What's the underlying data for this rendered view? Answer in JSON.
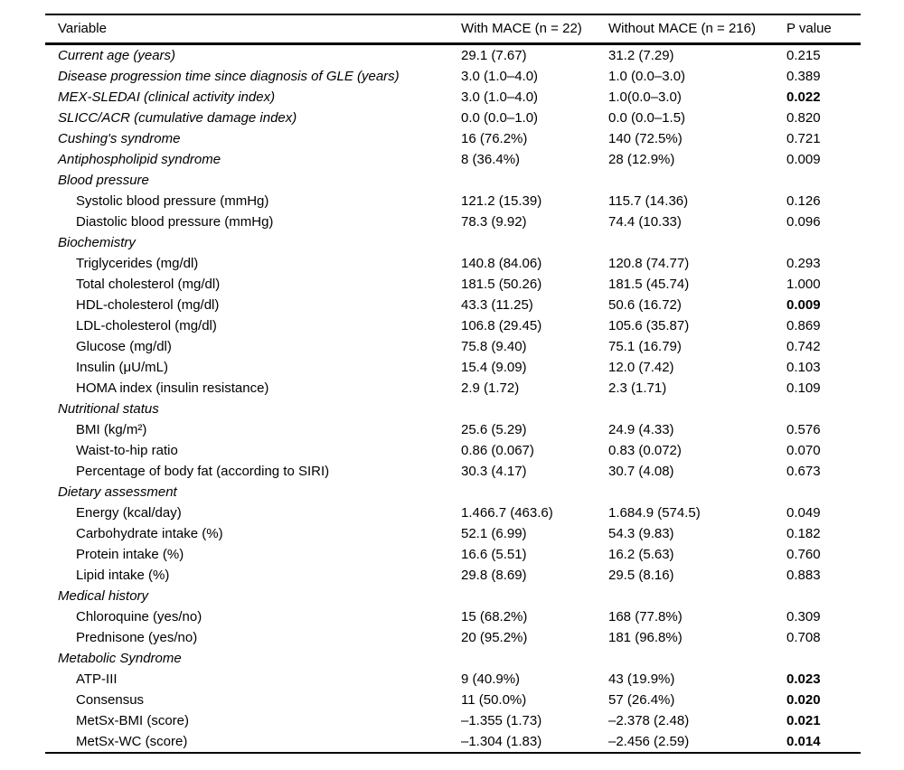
{
  "table": {
    "headers": {
      "variable": "Variable",
      "with_mace": "With MACE (n = 22)",
      "without_mace": "Without MACE (n = 216)",
      "p_value": "P value"
    },
    "rows": [
      {
        "label": "Current age (years)",
        "style": "top",
        "with_mace": "29.1 (7.67)",
        "without_mace": "31.2 (7.29)",
        "p_value": "0.215",
        "p_bold": false
      },
      {
        "label": "Disease progression time since diagnosis of GLE (years)",
        "style": "top",
        "with_mace": "3.0 (1.0–4.0)",
        "without_mace": "1.0 (0.0–3.0)",
        "p_value": "0.389",
        "p_bold": false
      },
      {
        "label": "MEX-SLEDAI (clinical activity index)",
        "style": "top",
        "with_mace": "3.0 (1.0–4.0)",
        "without_mace": "1.0(0.0–3.0)",
        "p_value": "0.022",
        "p_bold": true
      },
      {
        "label": "SLICC/ACR (cumulative damage index)",
        "style": "top",
        "with_mace": "0.0 (0.0–1.0)",
        "without_mace": "0.0 (0.0–1.5)",
        "p_value": "0.820",
        "p_bold": false
      },
      {
        "label": "Cushing's syndrome",
        "style": "top",
        "with_mace": "16 (76.2%)",
        "without_mace": "140 (72.5%)",
        "p_value": "0.721",
        "p_bold": false
      },
      {
        "label": "Antiphospholipid syndrome",
        "style": "top",
        "with_mace": "8 (36.4%)",
        "without_mace": "28 (12.9%)",
        "p_value": "0.009",
        "p_bold": false
      },
      {
        "label": "Blood pressure",
        "style": "section",
        "with_mace": "",
        "without_mace": "",
        "p_value": "",
        "p_bold": false
      },
      {
        "label": "Systolic blood pressure (mmHg)",
        "style": "sub",
        "with_mace": "121.2 (15.39)",
        "without_mace": "115.7 (14.36)",
        "p_value": "0.126",
        "p_bold": false
      },
      {
        "label": "Diastolic blood pressure (mmHg)",
        "style": "sub",
        "with_mace": "78.3 (9.92)",
        "without_mace": "74.4 (10.33)",
        "p_value": "0.096",
        "p_bold": false
      },
      {
        "label": "Biochemistry",
        "style": "section",
        "with_mace": "",
        "without_mace": "",
        "p_value": "",
        "p_bold": false
      },
      {
        "label": "Triglycerides (mg/dl)",
        "style": "sub",
        "with_mace": "140.8 (84.06)",
        "without_mace": "120.8 (74.77)",
        "p_value": "0.293",
        "p_bold": false
      },
      {
        "label": "Total cholesterol (mg/dl)",
        "style": "sub",
        "with_mace": "181.5 (50.26)",
        "without_mace": "181.5 (45.74)",
        "p_value": "1.000",
        "p_bold": false
      },
      {
        "label": "HDL-cholesterol (mg/dl)",
        "style": "sub",
        "with_mace": "43.3 (11.25)",
        "without_mace": "50.6 (16.72)",
        "p_value": "0.009",
        "p_bold": true
      },
      {
        "label": "LDL-cholesterol (mg/dl)",
        "style": "sub",
        "with_mace": "106.8 (29.45)",
        "without_mace": "105.6 (35.87)",
        "p_value": "0.869",
        "p_bold": false
      },
      {
        "label": "Glucose (mg/dl)",
        "style": "sub",
        "with_mace": "75.8 (9.40)",
        "without_mace": "75.1 (16.79)",
        "p_value": "0.742",
        "p_bold": false
      },
      {
        "label": "Insulin (μU/mL)",
        "style": "sub",
        "with_mace": "15.4 (9.09)",
        "without_mace": "12.0 (7.42)",
        "p_value": "0.103",
        "p_bold": false
      },
      {
        "label": "HOMA index (insulin resistance)",
        "style": "sub",
        "with_mace": "2.9 (1.72)",
        "without_mace": "2.3 (1.71)",
        "p_value": "0.109",
        "p_bold": false
      },
      {
        "label": "Nutritional status",
        "style": "section",
        "with_mace": "",
        "without_mace": "",
        "p_value": "",
        "p_bold": false
      },
      {
        "label": "BMI (kg/m²)",
        "style": "sub",
        "with_mace": "25.6 (5.29)",
        "without_mace": "24.9 (4.33)",
        "p_value": "0.576",
        "p_bold": false
      },
      {
        "label": "Waist-to-hip ratio",
        "style": "sub",
        "with_mace": "0.86 (0.067)",
        "without_mace": "0.83 (0.072)",
        "p_value": "0.070",
        "p_bold": false
      },
      {
        "label": "Percentage of body fat (according to SIRI)",
        "style": "sub",
        "with_mace": "30.3 (4.17)",
        "without_mace": "30.7 (4.08)",
        "p_value": "0.673",
        "p_bold": false
      },
      {
        "label": "Dietary assessment",
        "style": "section",
        "with_mace": "",
        "without_mace": "",
        "p_value": "",
        "p_bold": false
      },
      {
        "label": "Energy (kcal/day)",
        "style": "sub",
        "with_mace": "1.466.7 (463.6)",
        "without_mace": "1.684.9 (574.5)",
        "p_value": "0.049",
        "p_bold": false
      },
      {
        "label": "Carbohydrate intake (%)",
        "style": "sub",
        "with_mace": "52.1 (6.99)",
        "without_mace": "54.3 (9.83)",
        "p_value": "0.182",
        "p_bold": false
      },
      {
        "label": "Protein intake (%)",
        "style": "sub",
        "with_mace": "16.6 (5.51)",
        "without_mace": "16.2 (5.63)",
        "p_value": "0.760",
        "p_bold": false
      },
      {
        "label": "Lipid intake (%)",
        "style": "sub",
        "with_mace": "29.8 (8.69)",
        "without_mace": "29.5 (8.16)",
        "p_value": "0.883",
        "p_bold": false
      },
      {
        "label": "Medical history",
        "style": "section",
        "with_mace": "",
        "without_mace": "",
        "p_value": "",
        "p_bold": false
      },
      {
        "label": "Chloroquine (yes/no)",
        "style": "sub",
        "with_mace": "15 (68.2%)",
        "without_mace": "168 (77.8%)",
        "p_value": "0.309",
        "p_bold": false
      },
      {
        "label": "Prednisone (yes/no)",
        "style": "sub",
        "with_mace": "20 (95.2%)",
        "without_mace": "181 (96.8%)",
        "p_value": "0.708",
        "p_bold": false
      },
      {
        "label": "Metabolic Syndrome",
        "style": "section",
        "with_mace": "",
        "without_mace": "",
        "p_value": "",
        "p_bold": false
      },
      {
        "label": "ATP-III",
        "style": "sub",
        "with_mace": "9 (40.9%)",
        "without_mace": "43 (19.9%)",
        "p_value": "0.023",
        "p_bold": true
      },
      {
        "label": "Consensus",
        "style": "sub",
        "with_mace": "11 (50.0%)",
        "without_mace": "57 (26.4%)",
        "p_value": "0.020",
        "p_bold": true
      },
      {
        "label": "MetSx-BMI (score)",
        "style": "sub",
        "with_mace": "–1.355 (1.73)",
        "without_mace": "–2.378 (2.48)",
        "p_value": "0.021",
        "p_bold": true
      },
      {
        "label": "MetSx-WC (score)",
        "style": "sub",
        "with_mace": "–1.304 (1.83)",
        "without_mace": "–2.456 (2.59)",
        "p_value": "0.014",
        "p_bold": true
      }
    ]
  }
}
